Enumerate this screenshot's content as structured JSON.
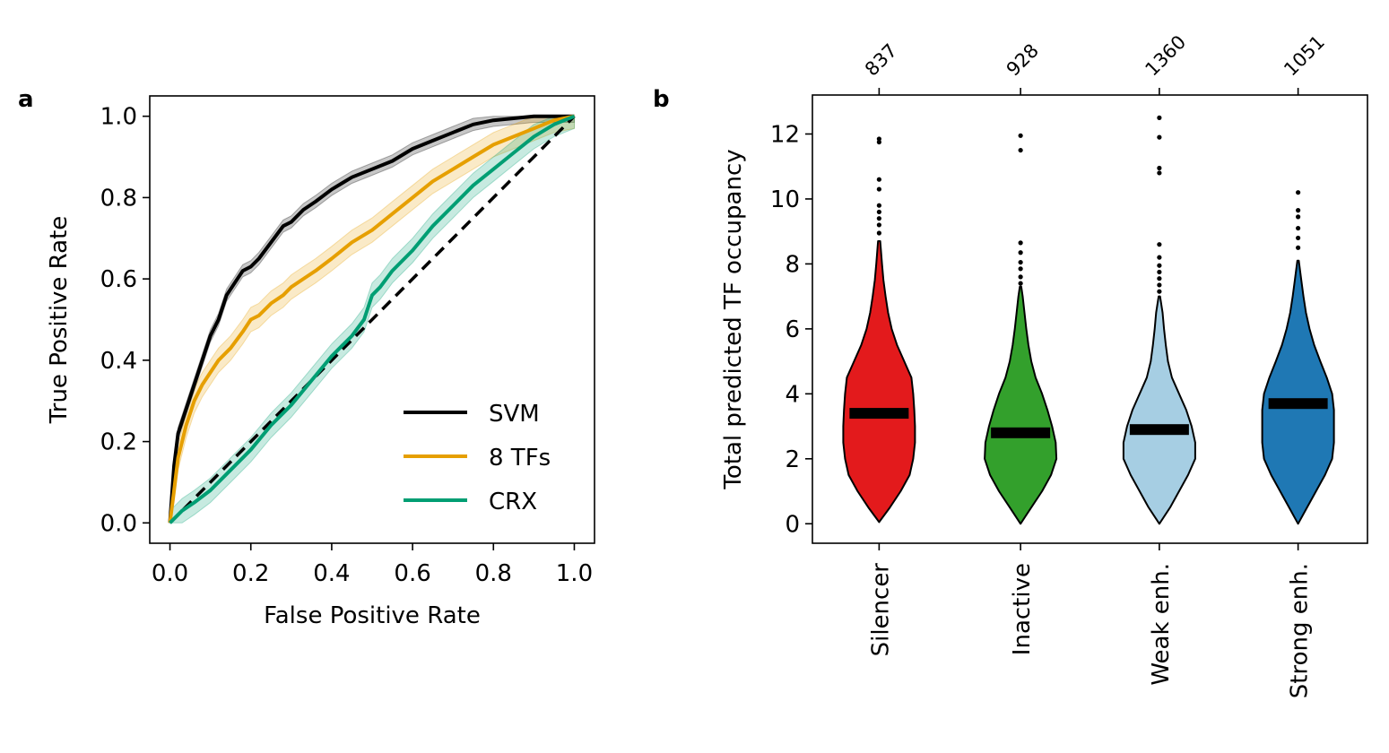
{
  "chart_data": [
    {
      "type": "line",
      "panel": "a",
      "xlabel": "False Positive Rate",
      "ylabel": "True Positive Rate",
      "xlim": [
        -0.05,
        1.05
      ],
      "ylim": [
        -0.05,
        1.05
      ],
      "xticks": [
        0.0,
        0.2,
        0.4,
        0.6,
        0.8,
        1.0
      ],
      "yticks": [
        0.0,
        0.2,
        0.4,
        0.6,
        0.8,
        1.0
      ],
      "xtick_labels": [
        "0.0",
        "0.2",
        "0.4",
        "0.6",
        "0.8",
        "1.0"
      ],
      "ytick_labels": [
        "0.0",
        "0.2",
        "0.4",
        "0.6",
        "0.8",
        "1.0"
      ],
      "legend_position": "bottom-right",
      "diagonal": {
        "style": "dashed",
        "color": "#000000"
      },
      "series": [
        {
          "name": "SVM",
          "color": "#000000",
          "x": [
            0,
            0.01,
            0.02,
            0.04,
            0.06,
            0.08,
            0.1,
            0.12,
            0.14,
            0.16,
            0.18,
            0.2,
            0.22,
            0.25,
            0.28,
            0.3,
            0.33,
            0.36,
            0.4,
            0.45,
            0.5,
            0.55,
            0.6,
            0.65,
            0.7,
            0.75,
            0.8,
            0.85,
            0.9,
            0.95,
            1.0
          ],
          "y": [
            0,
            0.14,
            0.22,
            0.28,
            0.34,
            0.4,
            0.46,
            0.5,
            0.56,
            0.59,
            0.62,
            0.63,
            0.65,
            0.69,
            0.73,
            0.74,
            0.77,
            0.79,
            0.82,
            0.85,
            0.87,
            0.89,
            0.92,
            0.94,
            0.96,
            0.98,
            0.99,
            0.995,
            1.0,
            1.0,
            1.0
          ],
          "band": 0.015
        },
        {
          "name": "8 TFs",
          "color": "#E69F00",
          "x": [
            0,
            0.01,
            0.02,
            0.04,
            0.06,
            0.08,
            0.1,
            0.12,
            0.15,
            0.18,
            0.2,
            0.22,
            0.25,
            0.28,
            0.3,
            0.33,
            0.36,
            0.4,
            0.45,
            0.5,
            0.55,
            0.6,
            0.65,
            0.7,
            0.75,
            0.8,
            0.85,
            0.9,
            0.95,
            1.0
          ],
          "y": [
            0,
            0.08,
            0.16,
            0.24,
            0.3,
            0.34,
            0.37,
            0.4,
            0.43,
            0.47,
            0.5,
            0.51,
            0.54,
            0.56,
            0.58,
            0.6,
            0.62,
            0.65,
            0.69,
            0.72,
            0.76,
            0.8,
            0.84,
            0.87,
            0.9,
            0.93,
            0.95,
            0.97,
            0.99,
            1.0
          ],
          "band": 0.03
        },
        {
          "name": "CRX",
          "color": "#009E73",
          "x": [
            0,
            0.03,
            0.06,
            0.1,
            0.15,
            0.2,
            0.25,
            0.3,
            0.35,
            0.4,
            0.45,
            0.48,
            0.5,
            0.52,
            0.55,
            0.6,
            0.65,
            0.7,
            0.75,
            0.8,
            0.85,
            0.9,
            0.95,
            1.0
          ],
          "y": [
            0,
            0.03,
            0.05,
            0.08,
            0.13,
            0.18,
            0.24,
            0.29,
            0.35,
            0.41,
            0.46,
            0.5,
            0.56,
            0.58,
            0.62,
            0.67,
            0.73,
            0.78,
            0.83,
            0.87,
            0.91,
            0.95,
            0.98,
            1.0
          ],
          "band": 0.03
        }
      ]
    },
    {
      "type": "violin",
      "panel": "b",
      "ylabel": "Total predicted TF occupancy",
      "ylim": [
        -0.6,
        13.2
      ],
      "yticks": [
        0,
        2,
        4,
        6,
        8,
        10,
        12
      ],
      "ytick_labels": [
        "0",
        "2",
        "4",
        "6",
        "8",
        "10",
        "12"
      ],
      "categories": [
        "Silencer",
        "Inactive",
        "Weak enh.",
        "Strong enh."
      ],
      "counts": [
        "837",
        "928",
        "1360",
        "1051"
      ],
      "colors": [
        "#E31A1C",
        "#33A02C",
        "#A6CEE3",
        "#1F78B4"
      ],
      "medians": [
        3.4,
        2.8,
        2.9,
        3.7
      ],
      "ranges": [
        [
          0.05,
          8.7
        ],
        [
          0.0,
          7.3
        ],
        [
          0.0,
          7.0
        ],
        [
          0.0,
          8.1
        ]
      ],
      "outliers": [
        [
          8.95,
          9.2,
          9.4,
          9.6,
          9.8,
          10.3,
          10.6,
          11.75,
          11.85
        ],
        [
          7.4,
          7.6,
          7.85,
          8.05,
          8.35,
          8.65,
          11.5,
          11.95
        ],
        [
          7.15,
          7.35,
          7.55,
          7.75,
          7.95,
          8.2,
          8.6,
          10.8,
          10.95,
          11.9,
          12.5
        ],
        [
          8.5,
          8.8,
          9.1,
          9.45,
          9.65,
          10.2
        ]
      ],
      "profiles": [
        [
          [
            0.05,
            0.0
          ],
          [
            0.5,
            0.3
          ],
          [
            1.0,
            0.6
          ],
          [
            1.5,
            0.85
          ],
          [
            2.0,
            0.95
          ],
          [
            2.5,
            1.0
          ],
          [
            3.0,
            1.0
          ],
          [
            3.5,
            0.98
          ],
          [
            4.0,
            0.95
          ],
          [
            4.5,
            0.9
          ],
          [
            5.0,
            0.7
          ],
          [
            5.5,
            0.5
          ],
          [
            6.0,
            0.35
          ],
          [
            6.5,
            0.25
          ],
          [
            7.0,
            0.18
          ],
          [
            7.5,
            0.12
          ],
          [
            8.0,
            0.08
          ],
          [
            8.7,
            0.03
          ]
        ],
        [
          [
            0.0,
            0.0
          ],
          [
            0.5,
            0.3
          ],
          [
            1.0,
            0.6
          ],
          [
            1.5,
            0.85
          ],
          [
            2.0,
            1.0
          ],
          [
            2.5,
            0.98
          ],
          [
            3.0,
            0.88
          ],
          [
            3.5,
            0.75
          ],
          [
            4.0,
            0.6
          ],
          [
            4.5,
            0.42
          ],
          [
            5.0,
            0.3
          ],
          [
            5.5,
            0.22
          ],
          [
            6.0,
            0.16
          ],
          [
            6.5,
            0.11
          ],
          [
            7.0,
            0.06
          ],
          [
            7.3,
            0.02
          ]
        ],
        [
          [
            0.0,
            0.0
          ],
          [
            0.5,
            0.3
          ],
          [
            1.0,
            0.55
          ],
          [
            1.5,
            0.8
          ],
          [
            2.0,
            1.0
          ],
          [
            2.5,
            1.0
          ],
          [
            3.0,
            0.9
          ],
          [
            3.5,
            0.75
          ],
          [
            4.0,
            0.55
          ],
          [
            4.5,
            0.35
          ],
          [
            5.0,
            0.24
          ],
          [
            5.5,
            0.18
          ],
          [
            6.0,
            0.13
          ],
          [
            6.5,
            0.09
          ],
          [
            7.0,
            0.02
          ]
        ],
        [
          [
            0.0,
            0.0
          ],
          [
            0.5,
            0.25
          ],
          [
            1.0,
            0.5
          ],
          [
            1.5,
            0.75
          ],
          [
            2.0,
            0.95
          ],
          [
            2.5,
            1.0
          ],
          [
            3.0,
            1.0
          ],
          [
            3.5,
            1.0
          ],
          [
            4.0,
            0.95
          ],
          [
            4.5,
            0.8
          ],
          [
            5.0,
            0.62
          ],
          [
            5.5,
            0.45
          ],
          [
            6.0,
            0.32
          ],
          [
            6.5,
            0.22
          ],
          [
            7.0,
            0.15
          ],
          [
            7.5,
            0.09
          ],
          [
            8.1,
            0.02
          ]
        ]
      ]
    }
  ]
}
